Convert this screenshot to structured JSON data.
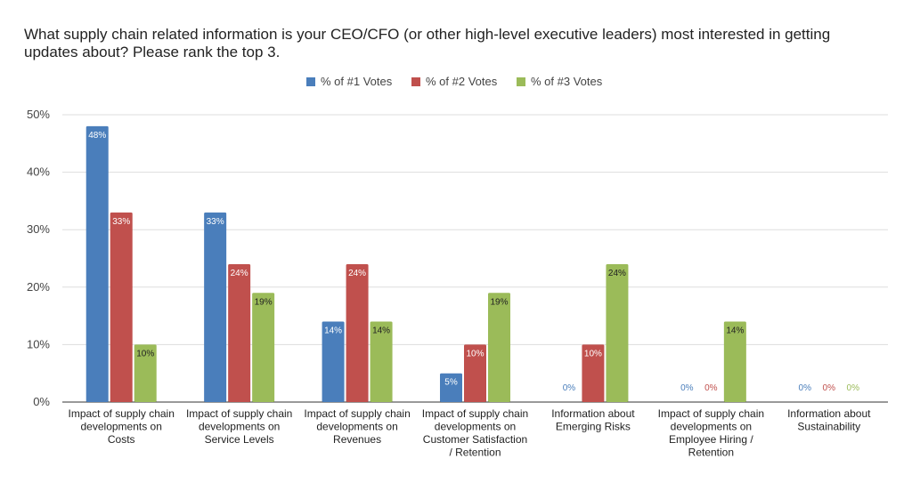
{
  "chart_data": {
    "type": "bar",
    "title": "What supply chain related information is your CEO/CFO (or other high-level executive leaders) most interested in getting updates about? Please rank the top 3.",
    "categories": [
      "Impact of supply chain developments on Costs",
      "Impact of supply chain developments on Service Levels",
      "Impact of supply chain developments on Revenues",
      "Impact of supply chain developments on Customer Satisfaction / Retention",
      "Information about Emerging Risks",
      "Impact of supply chain developments on Employee Hiring / Retention",
      "Information about Sustainability"
    ],
    "category_lines": [
      [
        "Impact of supply chain",
        "developments on",
        "Costs"
      ],
      [
        "Impact of supply chain",
        "developments on",
        "Service Levels"
      ],
      [
        "Impact of supply chain",
        "developments on",
        "Revenues"
      ],
      [
        "Impact of supply chain",
        "developments on",
        "Customer Satisfaction",
        "/ Retention"
      ],
      [
        "Information about",
        "Emerging Risks"
      ],
      [
        "Impact of supply chain",
        "developments on",
        "Employee Hiring /",
        "Retention"
      ],
      [
        "Information about",
        "Sustainability"
      ]
    ],
    "series": [
      {
        "name": "% of #1 Votes",
        "color": "#4a7ebb",
        "values": [
          48,
          33,
          14,
          5,
          0,
          0,
          0
        ],
        "labels": [
          "48%",
          "33%",
          "14%",
          "5%",
          "0%",
          "0%",
          "0%"
        ]
      },
      {
        "name": "% of #2 Votes",
        "color": "#c0504d",
        "values": [
          33,
          24,
          24,
          10,
          10,
          0,
          0
        ],
        "labels": [
          "33%",
          "24%",
          "24%",
          "10%",
          "10%",
          "0%",
          "0%"
        ]
      },
      {
        "name": "% of #3 Votes",
        "color": "#9bbb59",
        "values": [
          10,
          19,
          14,
          19,
          24,
          14,
          0
        ],
        "labels": [
          "10%",
          "19%",
          "14%",
          "19%",
          "24%",
          "14%",
          "0%"
        ]
      }
    ],
    "y_ticks": [
      "0%",
      "10%",
      "20%",
      "30%",
      "40%",
      "50%"
    ],
    "ylim": [
      0,
      50
    ],
    "grid": true,
    "legend_position": "top-center",
    "xlabel": "",
    "ylabel": ""
  }
}
